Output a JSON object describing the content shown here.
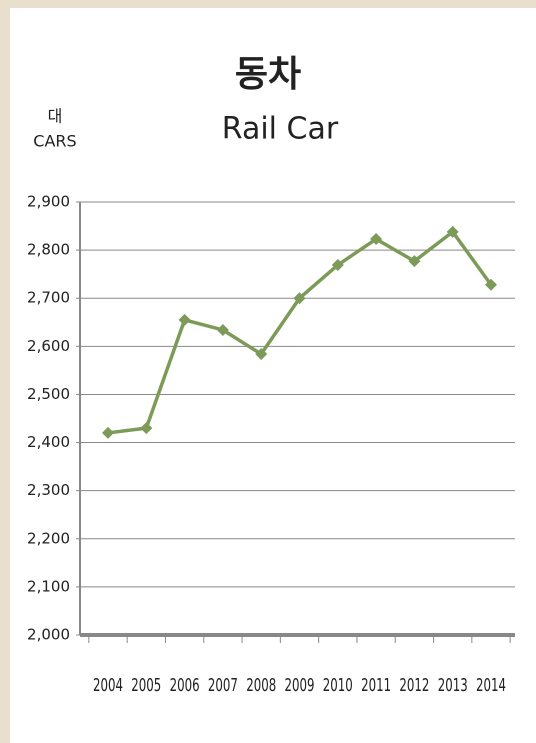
{
  "chart_data": {
    "type": "line",
    "title": "동차",
    "subtitle": "Rail Car",
    "y_label": "대",
    "y_label_en": "CARS",
    "categories": [
      "2004",
      "2005",
      "2006",
      "2007",
      "2008",
      "2009",
      "2010",
      "2011",
      "2012",
      "2013",
      "2014"
    ],
    "series": [
      {
        "name": "Rail Car",
        "color": "#7d9b58",
        "values": [
          2420,
          2430,
          2655,
          2634,
          2584,
          2700,
          2769,
          2823,
          2777,
          2838,
          2728
        ]
      }
    ],
    "ylim": [
      2000,
      2900
    ],
    "yticks": [
      {
        "value": 2000,
        "label": "2,000"
      },
      {
        "value": 2100,
        "label": "2,100"
      },
      {
        "value": 2200,
        "label": "2,200"
      },
      {
        "value": 2300,
        "label": "2,300"
      },
      {
        "value": 2400,
        "label": "2,400"
      },
      {
        "value": 2500,
        "label": "2,500"
      },
      {
        "value": 2600,
        "label": "2,600"
      },
      {
        "value": 2700,
        "label": "2,700"
      },
      {
        "value": 2800,
        "label": "2,800"
      },
      {
        "value": 2900,
        "label": "2,900"
      }
    ],
    "grid": true
  }
}
